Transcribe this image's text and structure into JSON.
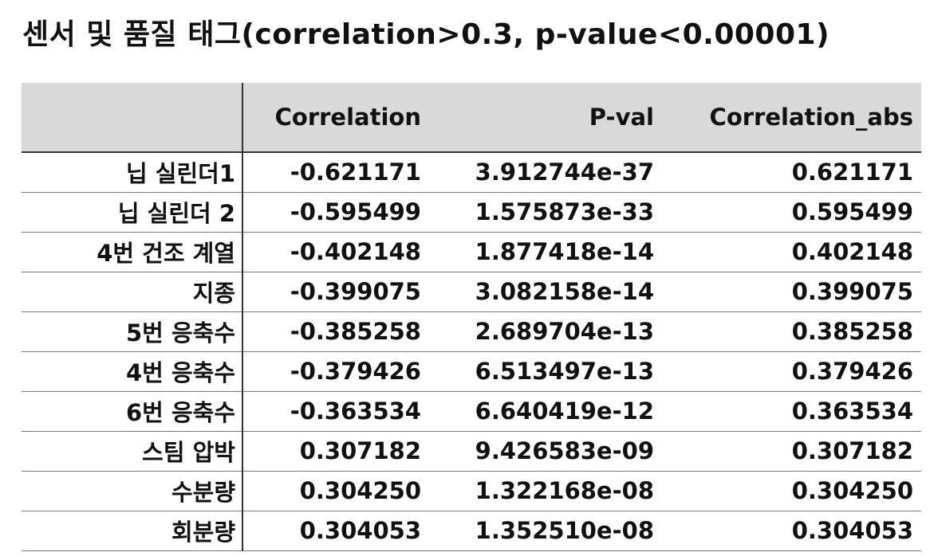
{
  "title": "센서 및 품질 태그(correlation>0.3, p-value<0.00001)",
  "table": {
    "columns": [
      "",
      "Correlation",
      "P-val",
      "Correlation_abs"
    ],
    "rows": [
      {
        "label": "닙 실린더1",
        "correlation": "-0.621171",
        "pval": "3.912744e-37",
        "abs": "0.621171"
      },
      {
        "label": "닙 실린더 2",
        "correlation": "-0.595499",
        "pval": "1.575873e-33",
        "abs": "0.595499"
      },
      {
        "label": "4번 건조 계열",
        "correlation": "-0.402148",
        "pval": "1.877418e-14",
        "abs": "0.402148"
      },
      {
        "label": "지종",
        "correlation": "-0.399075",
        "pval": "3.082158e-14",
        "abs": "0.399075"
      },
      {
        "label": "5번 응축수",
        "correlation": "-0.385258",
        "pval": "2.689704e-13",
        "abs": "0.385258"
      },
      {
        "label": "4번 응축수",
        "correlation": "-0.379426",
        "pval": "6.513497e-13",
        "abs": "0.379426"
      },
      {
        "label": "6번 응축수",
        "correlation": "-0.363534",
        "pval": "6.640419e-12",
        "abs": "0.363534"
      },
      {
        "label": "스팀 압박",
        "correlation": "0.307182",
        "pval": "9.426583e-09",
        "abs": "0.307182"
      },
      {
        "label": "수분량",
        "correlation": "0.304250",
        "pval": "1.322168e-08",
        "abs": "0.304250"
      },
      {
        "label": "회분량",
        "correlation": "0.304053",
        "pval": "1.352510e-08",
        "abs": "0.304053"
      }
    ]
  },
  "colors": {
    "header_bg": "#d9d9d9",
    "text": "#111111"
  }
}
